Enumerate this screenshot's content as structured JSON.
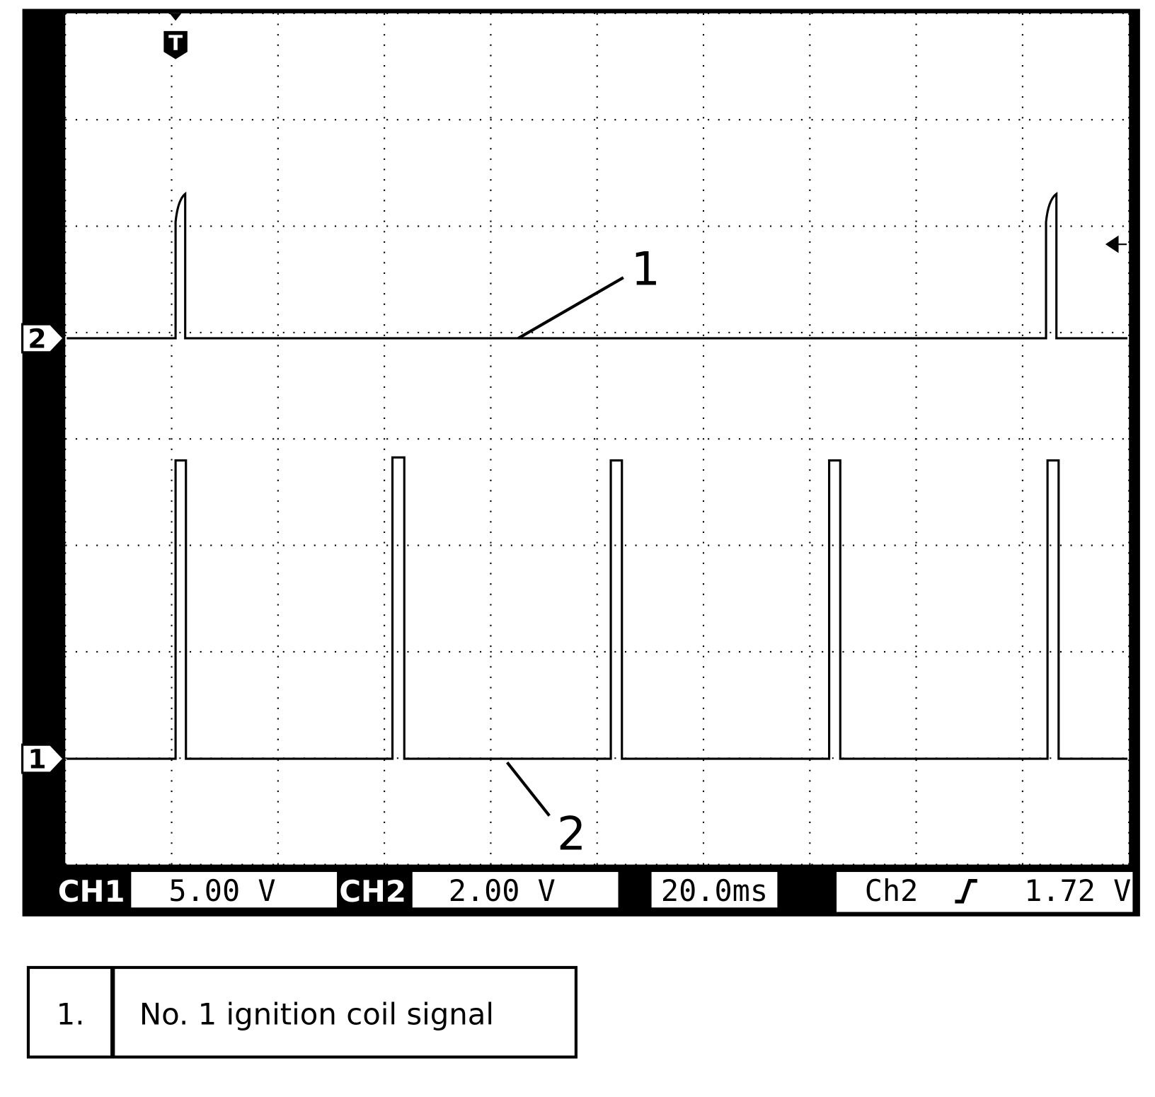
{
  "screen": {
    "trigger_marker": "T",
    "channel_markers": [
      "2",
      "1"
    ],
    "callouts": [
      "1",
      "2"
    ],
    "status_bar": {
      "ch1_label": "CH1",
      "ch1_scale": "5.00 V",
      "ch2_label": "CH2",
      "ch2_scale": "2.00 V",
      "timebase": "20.0ms",
      "trigger_source": "Ch2",
      "trigger_level": "1.72 V"
    }
  },
  "legend": {
    "rows": [
      [
        "1.",
        "No. 1 ignition coil signal"
      ]
    ]
  }
}
